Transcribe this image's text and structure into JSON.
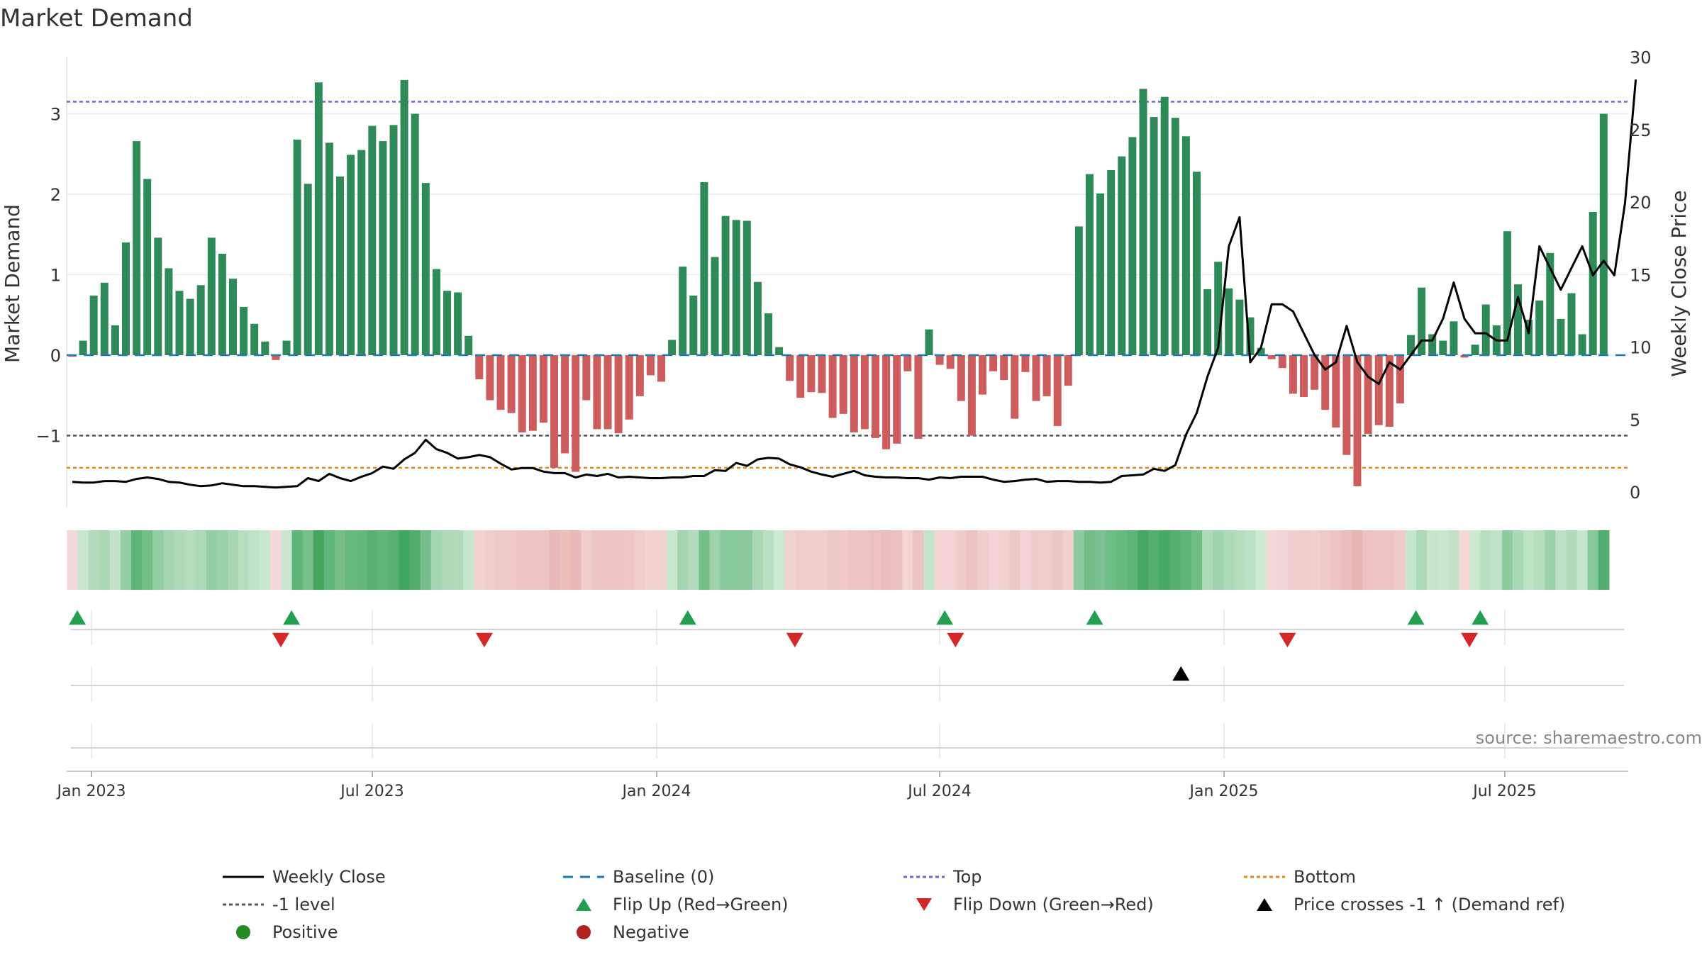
{
  "chart_data": {
    "type": "bar",
    "title": "Market Demand",
    "ylabel": "Market Demand",
    "y2label": "Weekly Close Price",
    "ylim": [
      -1.72,
      3.72
    ],
    "y2lim": [
      0,
      30
    ],
    "yticks": [
      -1,
      0,
      1,
      2,
      3
    ],
    "ytick_labels": [
      "−1",
      "0",
      "1",
      "2",
      "3"
    ],
    "y2ticks": [
      0,
      5,
      10,
      15,
      20,
      25,
      30
    ],
    "xticks": [
      "Jan 2023",
      "Jul 2023",
      "Jan 2024",
      "Jul 2024",
      "Jan 2025",
      "Jul 2025"
    ],
    "source": "source: sharemaestro.com",
    "levels": {
      "top": 3.15,
      "minus_one": -1,
      "bottom": -1.4,
      "baseline": 0
    },
    "colors": {
      "positive": "#2e8b57",
      "negative": "#cd5c5c",
      "close": "#000000",
      "top": "#6a6acd",
      "minus_one": "#555555",
      "bottom": "#e08a1e",
      "baseline": "#1f77b4",
      "flip_up": "#22a050",
      "flip_down": "#d62728",
      "cross": "#000000",
      "dot_positive": "#228b22",
      "dot_negative": "#b22222"
    },
    "series": [
      {
        "name": "Market Demand",
        "values": [
          -0.02,
          0.18,
          0.74,
          0.9,
          0.37,
          1.4,
          2.66,
          2.19,
          1.46,
          1.08,
          0.8,
          0.7,
          0.87,
          1.46,
          1.26,
          0.95,
          0.6,
          0.39,
          0.17,
          -0.06,
          0.18,
          2.68,
          2.13,
          3.39,
          2.64,
          2.22,
          2.49,
          2.55,
          2.85,
          2.66,
          2.86,
          3.42,
          3.0,
          2.14,
          1.07,
          0.8,
          0.78,
          0.24,
          -0.3,
          -0.56,
          -0.68,
          -0.72,
          -0.96,
          -0.94,
          -0.84,
          -1.4,
          -1.22,
          -1.45,
          -0.56,
          -0.92,
          -0.92,
          -0.97,
          -0.8,
          -0.51,
          -0.25,
          -0.33,
          0.19,
          1.1,
          0.74,
          2.15,
          1.22,
          1.73,
          1.68,
          1.67,
          0.91,
          0.52,
          0.1,
          -0.32,
          -0.53,
          -0.46,
          -0.47,
          -0.78,
          -0.73,
          -0.96,
          -0.92,
          -1.03,
          -1.17,
          -1.1,
          -0.2,
          -1.04,
          0.32,
          -0.12,
          -0.17,
          -0.57,
          -1.0,
          -0.49,
          -0.2,
          -0.31,
          -0.79,
          -0.21,
          -0.57,
          -0.51,
          -0.88,
          -0.38,
          1.6,
          2.25,
          2.01,
          2.3,
          2.47,
          2.71,
          3.31,
          2.96,
          3.21,
          2.95,
          2.72,
          2.28,
          0.82,
          1.16,
          0.83,
          0.69,
          0.47,
          0.09,
          -0.05,
          -0.16,
          -0.48,
          -0.52,
          -0.43,
          -0.68,
          -0.9,
          -1.24,
          -1.63,
          -0.98,
          -0.87,
          -0.89,
          -0.6,
          0.25,
          0.84,
          0.26,
          0.18,
          0.42,
          -0.03,
          0.13,
          0.63,
          0.37,
          1.54,
          0.88,
          0.44,
          0.68,
          1.27,
          0.45,
          0.77,
          0.26,
          1.78,
          3.0
        ]
      },
      {
        "name": "Weekly Close",
        "values": [
          0.75,
          0.7,
          0.7,
          0.8,
          0.8,
          0.75,
          0.95,
          1.05,
          0.95,
          0.75,
          0.7,
          0.55,
          0.45,
          0.5,
          0.65,
          0.55,
          0.45,
          0.45,
          0.4,
          0.35,
          0.4,
          0.45,
          1.0,
          0.8,
          1.3,
          1.0,
          0.8,
          1.1,
          1.35,
          1.8,
          1.65,
          2.3,
          2.75,
          3.65,
          3.0,
          2.75,
          2.35,
          2.45,
          2.6,
          2.45,
          2.0,
          1.6,
          1.7,
          1.7,
          1.45,
          1.35,
          1.35,
          1.05,
          1.25,
          1.15,
          1.3,
          1.05,
          1.1,
          1.05,
          1.0,
          1.0,
          1.05,
          1.05,
          1.15,
          1.15,
          1.55,
          1.5,
          2.05,
          1.85,
          2.3,
          2.4,
          2.35,
          1.95,
          1.75,
          1.45,
          1.25,
          1.1,
          1.3,
          1.5,
          1.2,
          1.1,
          1.05,
          1.05,
          1.0,
          1.0,
          0.9,
          1.05,
          1.0,
          1.1,
          1.1,
          1.1,
          0.9,
          0.75,
          0.8,
          0.9,
          0.95,
          0.75,
          0.8,
          0.8,
          0.75,
          0.75,
          0.7,
          0.75,
          1.15,
          1.2,
          1.25,
          1.65,
          1.5,
          1.9,
          4.0,
          5.5,
          8.0,
          10.0,
          17.0,
          19.0,
          9.0,
          10.0,
          13.0,
          13.0,
          12.5,
          11.0,
          9.5,
          8.5,
          9.0,
          11.5,
          9.0,
          8.0,
          7.5,
          9.0,
          8.5,
          9.5,
          10.5,
          10.5,
          12.0,
          14.5,
          12.0,
          11.0,
          11.0,
          10.5,
          10.5,
          13.5,
          11.0,
          17.0,
          15.5,
          14.0,
          15.5,
          17.0,
          15.0,
          16.0,
          15.0,
          20.0,
          28.5
        ]
      }
    ],
    "flip_up_weeks": [
      1,
      21,
      58,
      82,
      96,
      126,
      132
    ],
    "flip_down_weeks": [
      20,
      39,
      68,
      83,
      114,
      131
    ],
    "cross_weeks": [
      103
    ],
    "legend": [
      {
        "label": "Weekly Close"
      },
      {
        "label": "Baseline (0)"
      },
      {
        "label": "Top"
      },
      {
        "label": "Bottom"
      },
      {
        "label": "-1 level"
      },
      {
        "label": "Flip Up (Red→Green)"
      },
      {
        "label": "Flip Down (Green→Red)"
      },
      {
        "label": "Price crosses -1 ↑ (Demand ref)"
      },
      {
        "label": "Positive"
      },
      {
        "label": "Negative"
      }
    ]
  }
}
